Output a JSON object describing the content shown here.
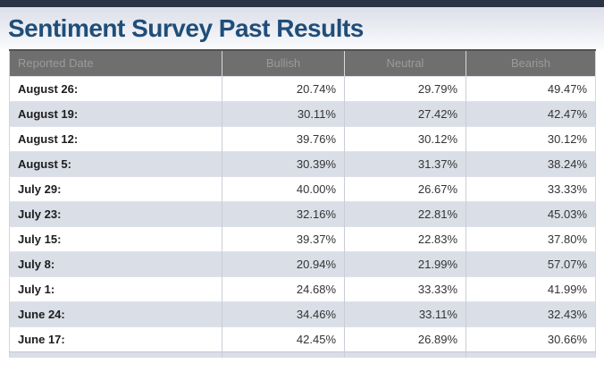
{
  "page": {
    "title": "Sentiment Survey Past Results"
  },
  "colors": {
    "top_bar": "#2b3444",
    "title_text": "#1f4e79",
    "header_row_bg": "#6f6f70",
    "header_row_text": "#9b9b9b",
    "row_alt_bg": "#dadee7",
    "row_bg": "#ffffff"
  },
  "table": {
    "columns": [
      "Reported Date",
      "Bullish",
      "Neutral",
      "Bearish"
    ],
    "rows": [
      {
        "date": "August 26:",
        "bullish": "20.74%",
        "neutral": "29.79%",
        "bearish": "49.47%"
      },
      {
        "date": "August 19:",
        "bullish": "30.11%",
        "neutral": "27.42%",
        "bearish": "42.47%"
      },
      {
        "date": "August 12:",
        "bullish": "39.76%",
        "neutral": "30.12%",
        "bearish": "30.12%"
      },
      {
        "date": "August 5:",
        "bullish": "30.39%",
        "neutral": "31.37%",
        "bearish": "38.24%"
      },
      {
        "date": "July 29:",
        "bullish": "40.00%",
        "neutral": "26.67%",
        "bearish": "33.33%"
      },
      {
        "date": "July 23:",
        "bullish": "32.16%",
        "neutral": "22.81%",
        "bearish": "45.03%"
      },
      {
        "date": "July 15:",
        "bullish": "39.37%",
        "neutral": "22.83%",
        "bearish": "37.80%"
      },
      {
        "date": "July 8:",
        "bullish": "20.94%",
        "neutral": "21.99%",
        "bearish": "57.07%"
      },
      {
        "date": "July 1:",
        "bullish": "24.68%",
        "neutral": "33.33%",
        "bearish": "41.99%"
      },
      {
        "date": "June 24:",
        "bullish": "34.46%",
        "neutral": "33.11%",
        "bearish": "32.43%"
      },
      {
        "date": "June 17:",
        "bullish": "42.45%",
        "neutral": "26.89%",
        "bearish": "30.66%"
      }
    ]
  },
  "chart_data": {
    "type": "table",
    "title": "Sentiment Survey Past Results",
    "columns": [
      "Reported Date",
      "Bullish",
      "Neutral",
      "Bearish"
    ],
    "rows": [
      [
        "August 26:",
        20.74,
        29.79,
        49.47
      ],
      [
        "August 19:",
        30.11,
        27.42,
        42.47
      ],
      [
        "August 12:",
        39.76,
        30.12,
        30.12
      ],
      [
        "August 5:",
        30.39,
        31.37,
        38.24
      ],
      [
        "July 29:",
        40.0,
        26.67,
        33.33
      ],
      [
        "July 23:",
        32.16,
        22.81,
        45.03
      ],
      [
        "July 15:",
        39.37,
        22.83,
        37.8
      ],
      [
        "July 8:",
        20.94,
        21.99,
        57.07
      ],
      [
        "July 1:",
        24.68,
        33.33,
        41.99
      ],
      [
        "June 24:",
        34.46,
        33.11,
        32.43
      ],
      [
        "June 17:",
        42.45,
        26.89,
        30.66
      ]
    ],
    "units": "percent"
  }
}
